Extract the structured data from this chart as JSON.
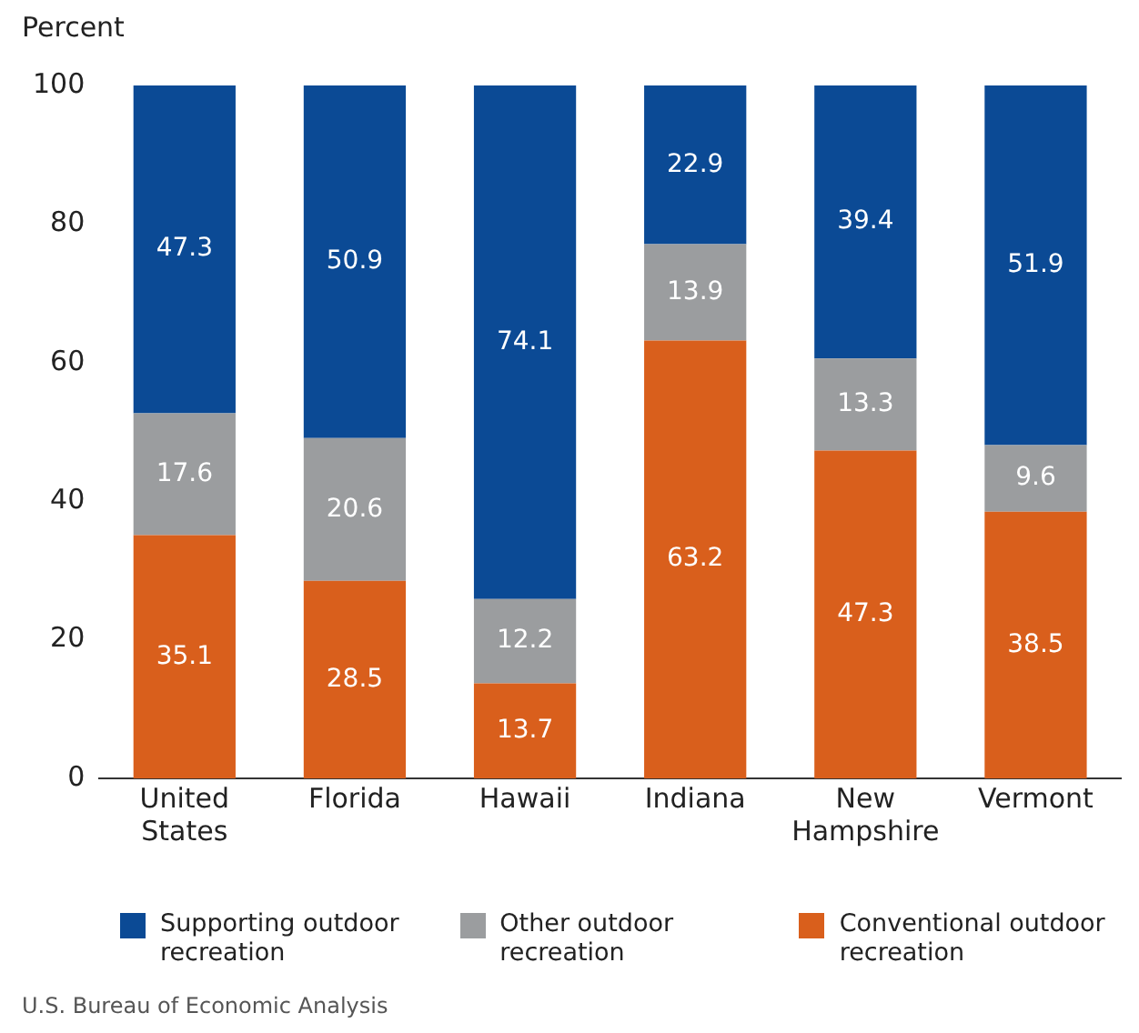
{
  "chart_data": {
    "type": "bar",
    "stacked": true,
    "ylabel": "Percent",
    "categories": [
      "United States",
      "Florida",
      "Hawaii",
      "Indiana",
      "New Hampshire",
      "Vermont"
    ],
    "series": [
      {
        "name": "Conventional outdoor recreation",
        "color": "#d95f1c",
        "values": [
          35.1,
          28.5,
          13.7,
          63.2,
          47.3,
          38.5
        ]
      },
      {
        "name": "Other outdoor recreation",
        "color": "#9b9d9f",
        "values": [
          17.6,
          20.6,
          12.2,
          13.9,
          13.3,
          9.6
        ]
      },
      {
        "name": "Supporting outdoor recreation",
        "color": "#0b4a95",
        "values": [
          47.3,
          50.9,
          74.1,
          22.9,
          39.4,
          51.9
        ]
      }
    ],
    "ylim": [
      0,
      100
    ],
    "yticks": [
      0,
      20,
      40,
      60,
      80,
      100
    ],
    "grid": false,
    "legend": "bottom",
    "data_labels": true,
    "annotations": [
      "U.S. Bureau of Economic Analysis"
    ]
  }
}
